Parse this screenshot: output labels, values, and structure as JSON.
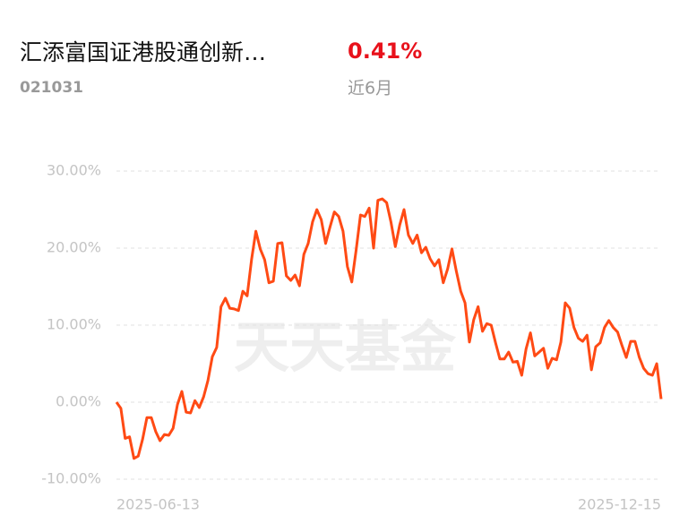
{
  "header": {
    "title": "汇添富国证港股通创新…",
    "code": "021031",
    "return": "0.41%",
    "period": "近6月"
  },
  "watermark": "天天基金",
  "chart_data": {
    "type": "line",
    "categories": [
      "2025-06-13",
      null,
      null,
      null,
      null,
      null,
      null,
      null,
      null,
      null,
      null,
      null,
      null,
      null,
      null,
      null,
      null,
      null,
      null,
      null,
      null,
      null,
      null,
      null,
      null,
      null,
      null,
      null,
      null,
      null,
      null,
      null,
      null,
      null,
      null,
      null,
      null,
      null,
      null,
      null,
      null,
      null,
      null,
      null,
      null,
      null,
      null,
      null,
      null,
      null,
      null,
      null,
      null,
      null,
      null,
      null,
      null,
      null,
      null,
      null,
      null,
      null,
      null,
      null,
      null,
      null,
      null,
      null,
      null,
      null,
      null,
      null,
      null,
      null,
      null,
      null,
      null,
      null,
      null,
      null,
      null,
      null,
      null,
      null,
      null,
      null,
      null,
      null,
      null,
      null,
      null,
      null,
      null,
      null,
      null,
      null,
      null,
      null,
      null,
      null,
      null,
      null,
      null,
      null,
      null,
      null,
      null,
      null,
      null,
      null,
      null,
      null,
      null,
      null,
      null,
      null,
      null,
      null,
      null,
      null,
      null,
      null,
      null,
      null,
      null,
      "2025-12-15"
    ],
    "series": [
      {
        "color": "#ff4a14",
        "values": [
          0,
          -0.8,
          -4.7,
          -4.5,
          -7.3,
          -7.0,
          -4.8,
          -2.0,
          -2.0,
          -3.8,
          -5.0,
          -4.2,
          -4.3,
          -3.4,
          -0.3,
          1.4,
          -1.3,
          -1.4,
          0.2,
          -0.7,
          0.7,
          2.8,
          5.9,
          7.1,
          12.4,
          13.5,
          12.2,
          12.1,
          11.9,
          14.4,
          13.8,
          18.5,
          22.2,
          19.9,
          18.5,
          15.5,
          15.7,
          20.6,
          20.7,
          16.4,
          15.8,
          16.5,
          15.1,
          19.2,
          20.6,
          23.4,
          25.0,
          23.7,
          20.6,
          22.7,
          24.7,
          24.1,
          22.2,
          17.6,
          15.6,
          19.7,
          24.3,
          24.1,
          25.2,
          20.0,
          26.2,
          26.4,
          25.9,
          23.4,
          20.2,
          23.0,
          25.0,
          21.7,
          20.6,
          21.7,
          19.4,
          20.1,
          18.6,
          17.7,
          18.5,
          15.5,
          17.3,
          19.9,
          17.0,
          14.4,
          12.9,
          7.8,
          10.7,
          12.4,
          9.2,
          10.2,
          10.0,
          7.7,
          5.6,
          5.6,
          6.5,
          5.2,
          5.3,
          3.5,
          6.9,
          9.0,
          6.0,
          6.5,
          7.0,
          4.4,
          5.7,
          5.5,
          7.8,
          12.9,
          12.2,
          9.7,
          8.3,
          7.9,
          8.7,
          4.2,
          7.2,
          7.7,
          9.7,
          10.6,
          9.7,
          9.1,
          7.4,
          5.8,
          7.9,
          7.9,
          5.8,
          4.4,
          3.7,
          3.5,
          5.0,
          0.41
        ]
      }
    ],
    "ylim": [
      -10,
      30
    ],
    "yticks": [
      {
        "value": 30,
        "label": "30.00%"
      },
      {
        "value": 20,
        "label": "20.00%"
      },
      {
        "value": 10,
        "label": "10.00%"
      },
      {
        "value": 0,
        "label": "0.00%"
      },
      {
        "value": -10,
        "label": "-10.00%"
      }
    ],
    "grid": true
  }
}
